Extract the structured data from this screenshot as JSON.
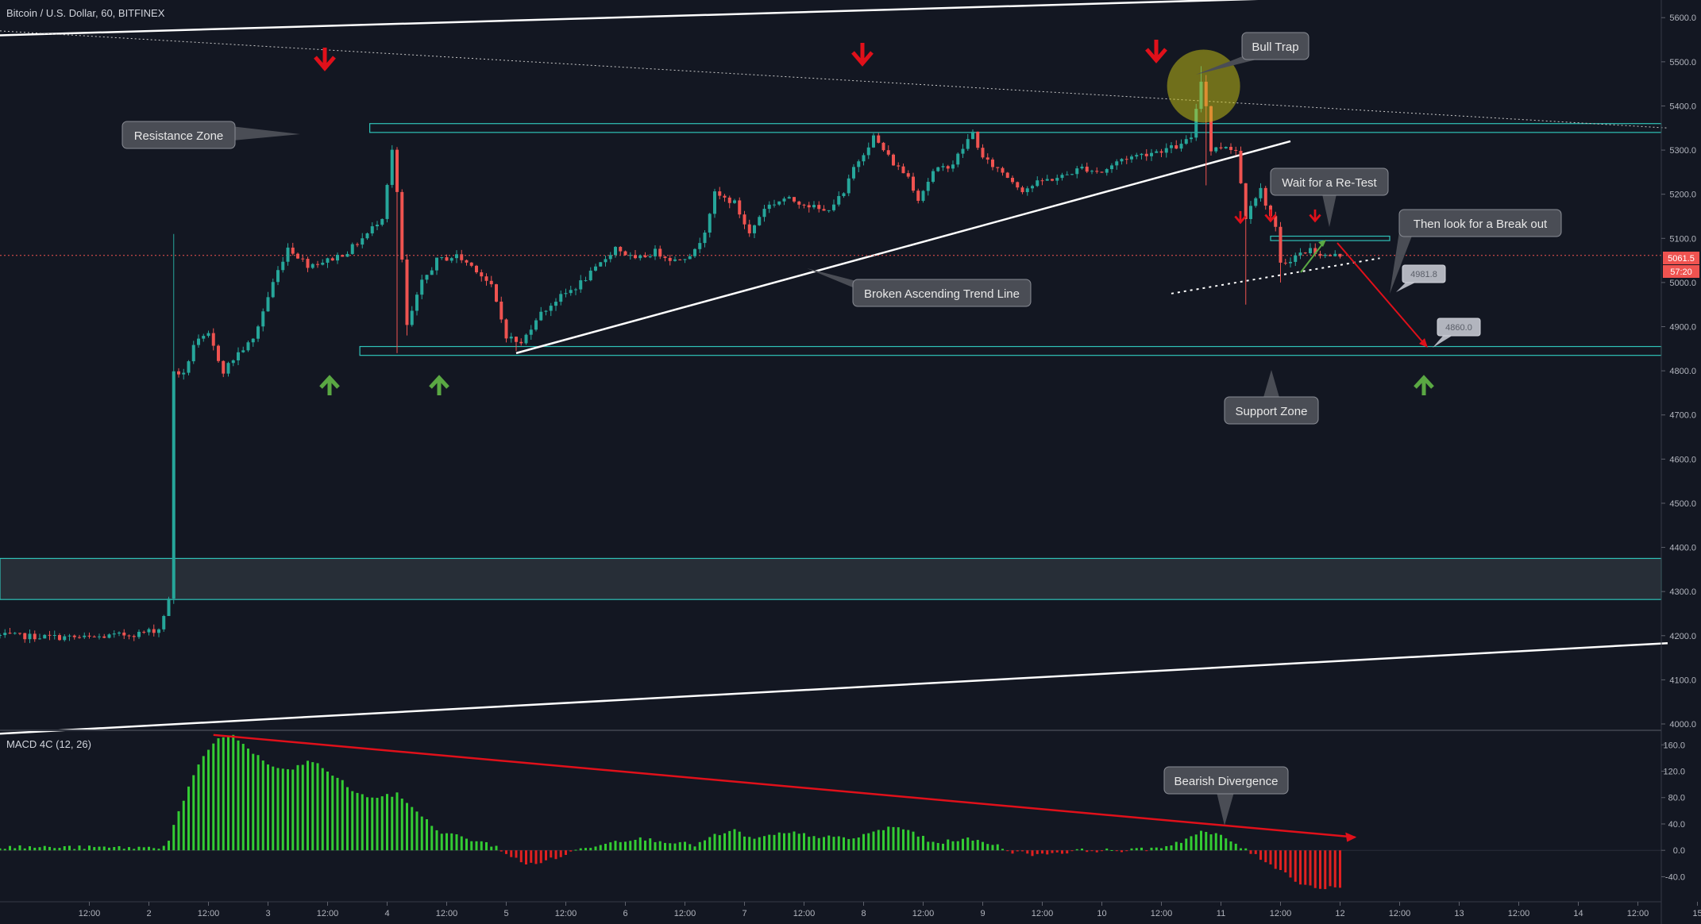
{
  "header": {
    "title": "Bitcoin / U.S. Dollar, 60, BITFINEX"
  },
  "macd_label": "MACD 4C (12, 26)",
  "theme": {
    "background": "#131722",
    "up": "#26a69a",
    "down": "#ef5350",
    "zone": "#2fc2b8",
    "macd_up": "#33cc33",
    "macd_down": "#e02020",
    "annotation_fill": "#4a4d55",
    "annotation_border": "#8a8d95",
    "arrow_red": "#e0101a",
    "arrow_green": "#5aa843"
  },
  "annotations": [
    {
      "id": "resistance-zone",
      "text": "Resistance Zone"
    },
    {
      "id": "bull-trap",
      "text": "Bull Trap"
    },
    {
      "id": "wait-retest",
      "text": "Wait for a Re-Test"
    },
    {
      "id": "break-out",
      "text": "Then look for a Break out"
    },
    {
      "id": "broken-trend",
      "text": "Broken Ascending Trend Line"
    },
    {
      "id": "support-zone",
      "text": "Support Zone"
    },
    {
      "id": "bearish-divergence",
      "text": "Bearish Divergence"
    }
  ],
  "price_badges": [
    {
      "id": "badge-4981",
      "text": "4981.8"
    },
    {
      "id": "badge-4860",
      "text": "4860.0"
    }
  ],
  "last_price": {
    "value": "5061.5",
    "countdown": "57:20"
  },
  "chart_data": {
    "type": "candlestick",
    "symbol": "Bitcoin / U.S. Dollar",
    "timeframe": "60",
    "exchange": "BITFINEX",
    "price_axis": {
      "ticks": [
        "4000.0",
        "4100.0",
        "4200.0",
        "4300.0",
        "4400.0",
        "4500.0",
        "4600.0",
        "4700.0",
        "4800.0",
        "4900.0",
        "5000.0",
        "5100.0",
        "5200.0",
        "5300.0",
        "5400.0",
        "5500.0",
        "5600.0"
      ],
      "range": [
        4000,
        5640
      ]
    },
    "time_axis": {
      "ticks": [
        "12:00",
        "2",
        "12:00",
        "3",
        "12:00",
        "4",
        "12:00",
        "5",
        "12:00",
        "6",
        "12:00",
        "7",
        "12:00",
        "8",
        "12:00",
        "9",
        "12:00",
        "10",
        "12:00",
        "11",
        "12:00",
        "12",
        "12:00",
        "13",
        "12:00",
        "14",
        "12:00",
        "15"
      ],
      "range_hours": [
        -18,
        318
      ]
    },
    "waypoints": [
      [
        -18,
        4200
      ],
      [
        0,
        4195
      ],
      [
        10,
        4205
      ],
      [
        14,
        4215
      ],
      [
        16,
        4280
      ],
      [
        17,
        4800
      ],
      [
        19,
        4790
      ],
      [
        21,
        4860
      ],
      [
        24,
        4880
      ],
      [
        27,
        4800
      ],
      [
        30,
        4840
      ],
      [
        33,
        4870
      ],
      [
        37,
        5000
      ],
      [
        40,
        5080
      ],
      [
        44,
        5040
      ],
      [
        48,
        5050
      ],
      [
        52,
        5070
      ],
      [
        56,
        5110
      ],
      [
        59,
        5150
      ],
      [
        61,
        5300
      ],
      [
        62,
        5200
      ],
      [
        64,
        4900
      ],
      [
        67,
        5000
      ],
      [
        70,
        5050
      ],
      [
        74,
        5060
      ],
      [
        78,
        5030
      ],
      [
        81,
        4990
      ],
      [
        84,
        4880
      ],
      [
        87,
        4860
      ],
      [
        90,
        4920
      ],
      [
        94,
        4960
      ],
      [
        98,
        4990
      ],
      [
        102,
        5030
      ],
      [
        106,
        5080
      ],
      [
        110,
        5050
      ],
      [
        114,
        5070
      ],
      [
        118,
        5050
      ],
      [
        122,
        5070
      ],
      [
        124,
        5120
      ],
      [
        126,
        5200
      ],
      [
        130,
        5180
      ],
      [
        133,
        5110
      ],
      [
        136,
        5170
      ],
      [
        140,
        5190
      ],
      [
        144,
        5180
      ],
      [
        148,
        5160
      ],
      [
        152,
        5200
      ],
      [
        154,
        5260
      ],
      [
        158,
        5330
      ],
      [
        162,
        5270
      ],
      [
        165,
        5240
      ],
      [
        167,
        5190
      ],
      [
        170,
        5250
      ],
      [
        174,
        5270
      ],
      [
        178,
        5340
      ],
      [
        180,
        5280
      ],
      [
        184,
        5250
      ],
      [
        188,
        5210
      ],
      [
        192,
        5230
      ],
      [
        196,
        5240
      ],
      [
        200,
        5260
      ],
      [
        204,
        5250
      ],
      [
        208,
        5280
      ],
      [
        212,
        5290
      ],
      [
        216,
        5300
      ],
      [
        220,
        5310
      ],
      [
        222,
        5330
      ],
      [
        224,
        5460
      ],
      [
        225,
        5400
      ],
      [
        226,
        5300
      ],
      [
        229,
        5310
      ],
      [
        231,
        5300
      ],
      [
        233,
        5150
      ],
      [
        234,
        5180
      ],
      [
        236,
        5210
      ],
      [
        239,
        5120
      ],
      [
        240,
        5040
      ],
      [
        243,
        5060
      ],
      [
        246,
        5075
      ],
      [
        249,
        5060
      ],
      [
        252,
        5061.5
      ]
    ],
    "resistance_zone": [
      5340,
      5360
    ],
    "support_zone": [
      4835,
      4855
    ],
    "lower_zone": [
      4282,
      4375
    ],
    "retest_zone": [
      5095,
      5105
    ],
    "price_targets": [
      4981.8,
      4860.0
    ],
    "macd": {
      "name": "MACD 4C",
      "params": [
        12,
        26
      ],
      "ticks": [
        "160.0",
        "120.0",
        "80.0",
        "40.0",
        "0.0",
        "-40.0"
      ],
      "range": [
        -78,
        182
      ],
      "waypoints": [
        [
          -18,
          5
        ],
        [
          14,
          4
        ],
        [
          16,
          15
        ],
        [
          18,
          60
        ],
        [
          22,
          130
        ],
        [
          26,
          170
        ],
        [
          29,
          175
        ],
        [
          31,
          160
        ],
        [
          36,
          130
        ],
        [
          40,
          120
        ],
        [
          44,
          135
        ],
        [
          46,
          130
        ],
        [
          50,
          110
        ],
        [
          54,
          85
        ],
        [
          58,
          80
        ],
        [
          62,
          85
        ],
        [
          66,
          60
        ],
        [
          70,
          30
        ],
        [
          76,
          18
        ],
        [
          82,
          6
        ],
        [
          84,
          -5
        ],
        [
          88,
          -22
        ],
        [
          94,
          -12
        ],
        [
          98,
          0
        ],
        [
          104,
          12
        ],
        [
          110,
          18
        ],
        [
          116,
          14
        ],
        [
          122,
          8
        ],
        [
          126,
          22
        ],
        [
          130,
          30
        ],
        [
          134,
          16
        ],
        [
          138,
          24
        ],
        [
          142,
          26
        ],
        [
          148,
          20
        ],
        [
          154,
          18
        ],
        [
          158,
          28
        ],
        [
          162,
          36
        ],
        [
          166,
          28
        ],
        [
          170,
          10
        ],
        [
          176,
          18
        ],
        [
          182,
          10
        ],
        [
          186,
          -2
        ],
        [
          190,
          -6
        ],
        [
          196,
          -3
        ],
        [
          200,
          0
        ],
        [
          210,
          0
        ],
        [
          216,
          5
        ],
        [
          220,
          14
        ],
        [
          224,
          28
        ],
        [
          228,
          22
        ],
        [
          231,
          10
        ],
        [
          233,
          0
        ],
        [
          236,
          -12
        ],
        [
          240,
          -30
        ],
        [
          244,
          -50
        ],
        [
          248,
          -58
        ],
        [
          252,
          -55
        ]
      ]
    }
  }
}
